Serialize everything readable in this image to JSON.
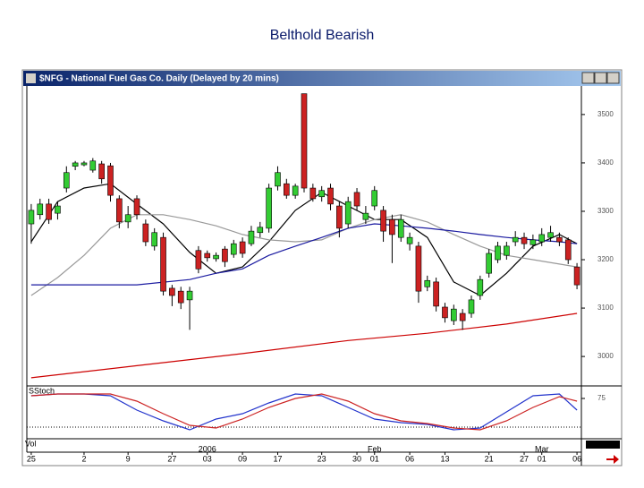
{
  "slide_title": "Belthold Bearish",
  "window_title": "$NFG - National Fuel Gas Co. Daily (Delayed by 20 mins)",
  "chart_data": [
    {
      "type": "candlestick",
      "up_color": "#33cc33",
      "down_color": "#cc2222",
      "open": [
        32.74,
        32.93,
        33.15,
        32.96,
        33.48,
        33.93,
        33.96,
        33.85,
        33.98,
        33.94,
        33.26,
        32.78,
        33.26,
        32.74,
        32.28,
        32.46,
        31.41,
        31.35,
        31.17,
        32.19,
        32.13,
        32.02,
        32.22,
        32.11,
        32.37,
        32.33,
        32.56,
        32.65,
        33.52,
        33.57,
        33.33,
        35.43,
        33.48,
        33.3,
        33.48,
        33.11,
        32.74,
        33.39,
        32.83,
        33.11,
        33.02,
        32.83,
        32.46,
        32.33,
        32.28,
        31.44,
        31.54,
        31.02,
        30.74,
        30.89,
        30.89,
        31.26,
        31.72,
        32.0,
        32.09,
        32.37,
        32.46,
        32.31,
        32.37,
        32.46,
        32.46,
        32.41,
        31.85
      ],
      "high": [
        33.15,
        33.26,
        33.26,
        33.2,
        33.93,
        34.04,
        34.04,
        34.1,
        34.04,
        34.0,
        33.33,
        33.11,
        33.33,
        32.83,
        32.65,
        32.56,
        31.48,
        31.44,
        31.44,
        32.28,
        32.19,
        32.15,
        32.28,
        32.41,
        32.46,
        32.7,
        32.78,
        33.57,
        33.93,
        33.67,
        33.57,
        35.43,
        33.57,
        33.52,
        33.57,
        33.2,
        33.3,
        33.48,
        33.11,
        33.52,
        33.11,
        32.93,
        32.93,
        32.56,
        32.37,
        31.67,
        31.63,
        31.11,
        31.07,
        30.98,
        31.26,
        31.67,
        32.22,
        32.37,
        32.37,
        32.59,
        32.56,
        32.52,
        32.65,
        32.7,
        32.56,
        32.46,
        31.93
      ],
      "low": [
        32.33,
        32.83,
        32.74,
        32.83,
        33.39,
        33.85,
        33.93,
        33.8,
        33.57,
        33.2,
        32.65,
        32.65,
        32.83,
        32.28,
        32.19,
        31.26,
        31.04,
        30.98,
        30.55,
        31.72,
        31.96,
        31.96,
        31.85,
        32.04,
        32.04,
        32.28,
        32.46,
        32.56,
        33.43,
        33.26,
        33.26,
        33.39,
        33.2,
        33.2,
        33.02,
        32.46,
        32.65,
        33.02,
        32.74,
        33.02,
        32.37,
        31.93,
        32.37,
        32.19,
        31.11,
        31.35,
        30.93,
        30.7,
        30.65,
        30.55,
        30.8,
        31.17,
        31.63,
        31.93,
        32.0,
        32.28,
        32.22,
        32.22,
        32.28,
        32.37,
        32.28,
        31.91,
        31.39
      ],
      "close": [
        33.02,
        33.15,
        32.83,
        33.11,
        33.8,
        34.0,
        34.0,
        34.04,
        33.67,
        33.33,
        32.78,
        32.93,
        32.93,
        32.37,
        32.56,
        31.35,
        31.26,
        31.11,
        31.35,
        31.81,
        32.04,
        32.09,
        31.96,
        32.33,
        32.13,
        32.59,
        32.67,
        33.48,
        33.8,
        33.33,
        33.52,
        33.48,
        33.26,
        33.43,
        33.15,
        32.65,
        33.2,
        33.11,
        32.96,
        33.43,
        32.59,
        32.52,
        32.83,
        32.46,
        31.35,
        31.57,
        31.04,
        30.8,
        30.98,
        30.74,
        31.17,
        31.59,
        32.13,
        32.28,
        32.28,
        32.46,
        32.33,
        32.41,
        32.52,
        32.56,
        32.37,
        32.0,
        31.48
      ],
      "series": [
        {
          "color": "#000000",
          "x": [
            0,
            3,
            6,
            9,
            12,
            15,
            18,
            21,
            24,
            27,
            30,
            33,
            36,
            39,
            42,
            45,
            48,
            51,
            54,
            57,
            60,
            62
          ],
          "values": [
            32.37,
            33.2,
            33.48,
            33.57,
            33.15,
            32.74,
            32.15,
            31.72,
            31.85,
            32.37,
            33.02,
            33.39,
            33.11,
            32.83,
            32.83,
            32.46,
            31.54,
            31.26,
            31.72,
            32.28,
            32.52,
            32.33
          ]
        },
        {
          "color": "#999999",
          "x": [
            0,
            3,
            6,
            9,
            12,
            15,
            18,
            21,
            24,
            27,
            30,
            33,
            36,
            39,
            42,
            45,
            48,
            51,
            54,
            57,
            60,
            62
          ],
          "values": [
            31.26,
            31.63,
            32.09,
            32.65,
            32.93,
            32.93,
            32.83,
            32.7,
            32.52,
            32.41,
            32.37,
            32.41,
            32.65,
            32.83,
            32.93,
            32.78,
            32.52,
            32.28,
            32.09,
            32.0,
            31.91,
            31.85
          ]
        },
        {
          "color": "#1a1aa0",
          "x": [
            0,
            6,
            12,
            18,
            21,
            24,
            27,
            30,
            33,
            36,
            39,
            42,
            45,
            48,
            51,
            54,
            57,
            60,
            62
          ],
          "values": [
            31.48,
            31.48,
            31.48,
            31.59,
            31.72,
            31.81,
            32.09,
            32.28,
            32.46,
            32.65,
            32.74,
            32.7,
            32.65,
            32.59,
            32.52,
            32.46,
            32.41,
            32.37,
            32.33
          ]
        },
        {
          "color": "#cc0000",
          "x": [
            0,
            12,
            24,
            36,
            45,
            54,
            62
          ],
          "values": [
            29.56,
            29.81,
            30.06,
            30.33,
            30.48,
            30.67,
            30.89
          ]
        }
      ],
      "ylim": [
        29.41,
        35.59
      ],
      "yticks": [
        {
          "value": 35,
          "label": "3500"
        },
        {
          "value": 34,
          "label": "3400"
        },
        {
          "value": 33,
          "label": "3300"
        },
        {
          "value": 32,
          "label": "3200"
        },
        {
          "value": 31,
          "label": "3100"
        },
        {
          "value": 30,
          "label": "3000"
        }
      ],
      "xticks": [
        {
          "value": 0,
          "label": "25"
        },
        {
          "value": 6,
          "label": "2"
        },
        {
          "value": 11,
          "label": "9"
        },
        {
          "value": 16,
          "label": "27"
        },
        {
          "value": 20,
          "label": "03"
        },
        {
          "value": 24,
          "label": "09"
        },
        {
          "value": 28,
          "label": "17"
        },
        {
          "value": 33,
          "label": "23"
        },
        {
          "value": 37,
          "label": "30"
        },
        {
          "value": 39,
          "label": "01"
        },
        {
          "value": 43,
          "label": "06"
        },
        {
          "value": 47,
          "label": "13"
        },
        {
          "value": 52,
          "label": "21"
        },
        {
          "value": 56,
          "label": "27"
        },
        {
          "value": 58,
          "label": "01"
        },
        {
          "value": 62,
          "label": "06"
        }
      ],
      "period_labels": [
        {
          "value": 20,
          "label": "2006"
        },
        {
          "value": 39,
          "label": "Feb"
        },
        {
          "value": 58,
          "label": "Mar"
        }
      ]
    },
    {
      "type": "line",
      "title": "SStoch",
      "series": [
        {
          "color": "#2233cc",
          "x": [
            0,
            3,
            6,
            9,
            12,
            15,
            18,
            21,
            24,
            27,
            30,
            33,
            36,
            39,
            42,
            45,
            48,
            51,
            54,
            57,
            60,
            62
          ],
          "values": [
            79.7,
            82.8,
            82.8,
            79.7,
            54.7,
            35.9,
            20.3,
            39.1,
            48.4,
            67.2,
            82.8,
            79.7,
            59.4,
            39.1,
            32.8,
            29.7,
            20.3,
            23.4,
            51.6,
            79.7,
            82.8,
            54.7
          ]
        },
        {
          "color": "#cc2222",
          "x": [
            0,
            3,
            6,
            9,
            12,
            15,
            18,
            21,
            24,
            27,
            30,
            33,
            36,
            39,
            42,
            45,
            48,
            51,
            54,
            57,
            60,
            62
          ],
          "values": [
            79.7,
            82.8,
            82.8,
            82.8,
            70.3,
            48.4,
            28.1,
            23.4,
            39.1,
            59.4,
            75.0,
            82.8,
            70.3,
            48.4,
            35.9,
            31.3,
            23.4,
            20.3,
            35.9,
            59.4,
            78.1,
            70.3
          ]
        }
      ],
      "ylim": [
        4.7,
        95.3
      ],
      "yticks": [
        75
      ],
      "ref_line": 25
    }
  ],
  "volume_title": "Vol"
}
